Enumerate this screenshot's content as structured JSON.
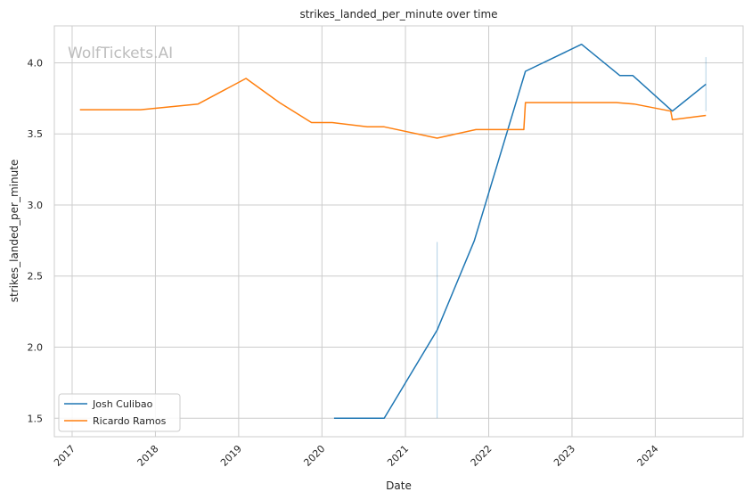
{
  "chart_data": {
    "type": "line",
    "title": "strikes_landed_per_minute over time",
    "xlabel": "Date",
    "ylabel": "strikes_landed_per_minute",
    "watermark": "WolfTickets.AI",
    "xlim": [
      "2016-10-15",
      "2025-01-20"
    ],
    "ylim": [
      1.37,
      4.26
    ],
    "x_ticks": [
      "2017",
      "2018",
      "2019",
      "2020",
      "2021",
      "2022",
      "2023",
      "2024"
    ],
    "y_ticks": [
      "1.5",
      "2.0",
      "2.5",
      "3.0",
      "3.5",
      "4.0"
    ],
    "grid": true,
    "legend_position": "lower-left",
    "series": [
      {
        "name": "Josh Culibao",
        "color": "#1f77b4",
        "points": [
          [
            "2020-02-23",
            1.5
          ],
          [
            "2020-09-30",
            1.5
          ],
          [
            "2021-05-20",
            2.12
          ],
          [
            "2021-10-30",
            2.75
          ],
          [
            "2022-06-11",
            3.94
          ],
          [
            "2023-02-12",
            4.13
          ],
          [
            "2023-07-30",
            3.91
          ],
          [
            "2023-09-25",
            3.91
          ],
          [
            "2024-03-16",
            3.66
          ],
          [
            "2024-08-10",
            3.85
          ]
        ]
      },
      {
        "name": "Ricardo Ramos",
        "color": "#ff7f0e",
        "points": [
          [
            "2017-02-04",
            3.67
          ],
          [
            "2017-10-28",
            3.67
          ],
          [
            "2018-07-07",
            3.71
          ],
          [
            "2019-02-02",
            3.89
          ],
          [
            "2019-06-29",
            3.72
          ],
          [
            "2019-11-16",
            3.58
          ],
          [
            "2020-02-15",
            3.58
          ],
          [
            "2020-07-18",
            3.55
          ],
          [
            "2020-09-30",
            3.55
          ],
          [
            "2021-05-20",
            3.47
          ],
          [
            "2021-11-06",
            3.53
          ],
          [
            "2022-06-04",
            3.53
          ],
          [
            "2022-06-11",
            3.72
          ],
          [
            "2023-07-15",
            3.72
          ],
          [
            "2023-09-30",
            3.71
          ],
          [
            "2024-03-09",
            3.66
          ],
          [
            "2024-03-16",
            3.6
          ],
          [
            "2024-08-10",
            3.63
          ]
        ]
      }
    ],
    "error_bars": [
      {
        "x": "2021-05-20",
        "low": 1.5,
        "high": 2.74,
        "color": "#1f77b4"
      },
      {
        "x": "2024-08-10",
        "low": 3.66,
        "high": 4.04,
        "color": "#1f77b4"
      }
    ]
  }
}
